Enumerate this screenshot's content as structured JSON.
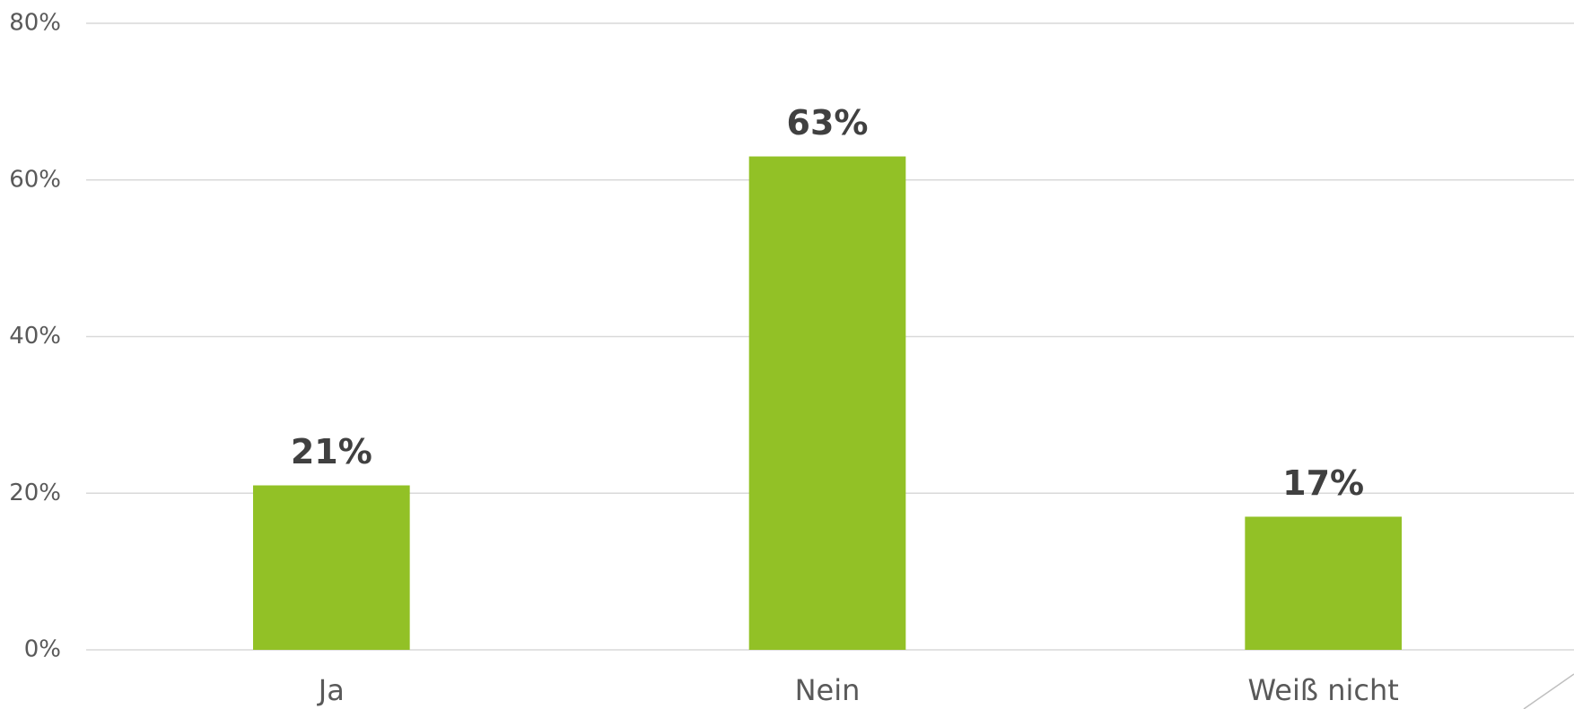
{
  "chart_data": {
    "type": "bar",
    "categories": [
      "Ja",
      "Nein",
      "Weiß nicht"
    ],
    "values": [
      21,
      63,
      17
    ],
    "value_labels": [
      "21%",
      "63%",
      "17%"
    ],
    "color": "#92c126",
    "ylim": [
      0,
      80
    ],
    "yticks": [
      {
        "value": 0,
        "label": "0%"
      },
      {
        "value": 20,
        "label": "20%"
      },
      {
        "value": 40,
        "label": "40%"
      },
      {
        "value": 60,
        "label": "60%"
      },
      {
        "value": 80,
        "label": "80%"
      }
    ],
    "grid": true
  }
}
